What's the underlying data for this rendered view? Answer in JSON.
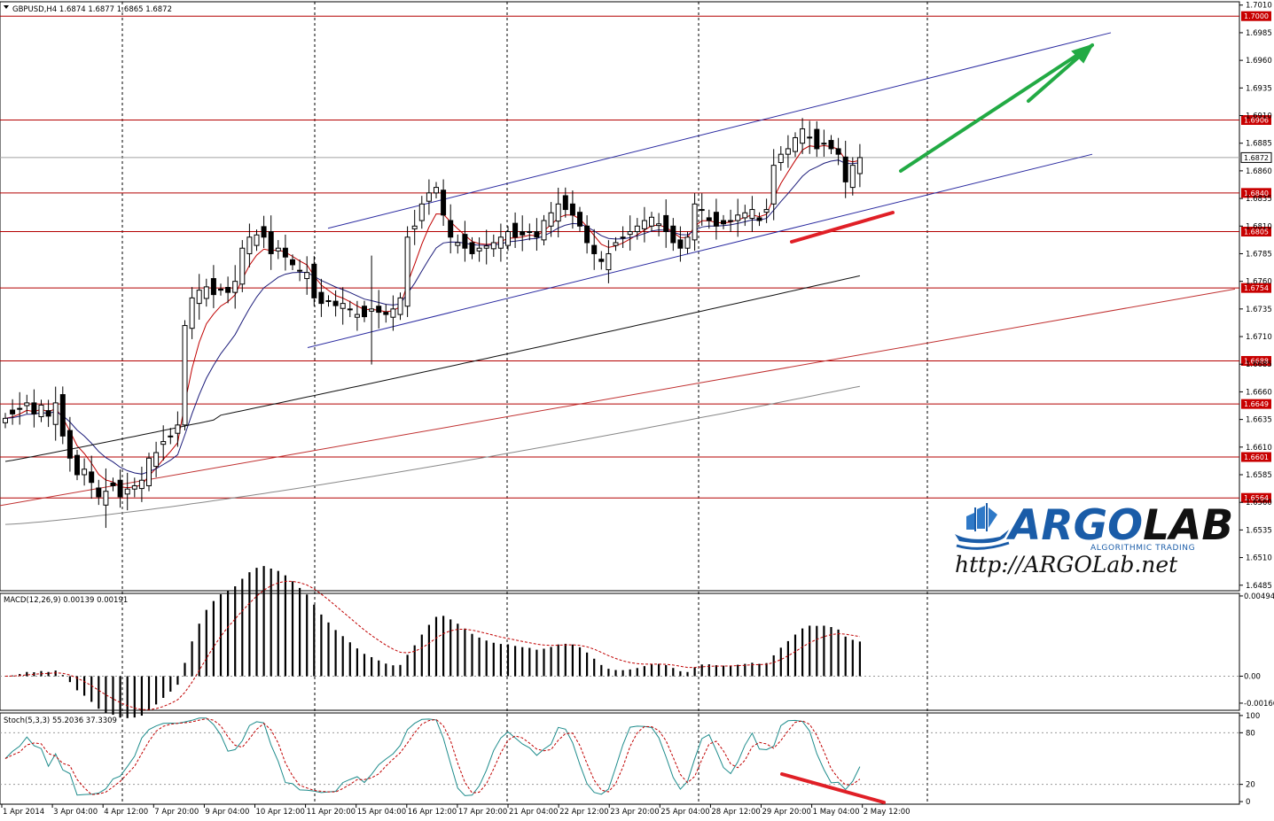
{
  "chart_data": [
    {
      "type": "candlestick",
      "header": "GBPUSD,H4  1.6874 1.6877 1.6865 1.6872",
      "y_ticks": [
        "1.7010",
        "1.6985",
        "1.6960",
        "1.6935",
        "1.6910",
        "1.6885",
        "1.6860",
        "1.6835",
        "1.6810",
        "1.6785",
        "1.6760",
        "1.6735",
        "1.6710",
        "1.6685",
        "1.6660",
        "1.6635",
        "1.6610",
        "1.6585",
        "1.6560",
        "1.6535",
        "1.6510",
        "1.6485"
      ],
      "ylim": [
        1.648,
        1.7013
      ],
      "x_labels": [
        "1 Apr 2014",
        "3 Apr 04:00",
        "4 Apr 12:00",
        "7 Apr 20:00",
        "9 Apr 04:00",
        "10 Apr 12:00",
        "11 Apr 20:00",
        "15 Apr 04:00",
        "16 Apr 12:00",
        "17 Apr 20:00",
        "21 Apr 04:00",
        "22 Apr 12:00",
        "23 Apr 20:00",
        "25 Apr 04:00",
        "28 Apr 12:00",
        "29 Apr 20:00",
        "1 May 04:00",
        "2 May 12:00"
      ],
      "grid": "vertical dashed lines at day boundaries",
      "horizontal_levels": [
        {
          "label": "1.7000",
          "value": 1.7
        },
        {
          "label": "1.6906",
          "value": 1.6906
        },
        {
          "label": "1.6840",
          "value": 1.684
        },
        {
          "label": "1.6805",
          "value": 1.6805
        },
        {
          "label": "1.6754",
          "value": 1.6754
        },
        {
          "label": "1.6688",
          "value": 1.6688
        },
        {
          "label": "1.6649",
          "value": 1.6649
        },
        {
          "label": "1.6601",
          "value": 1.6601
        },
        {
          "label": "1.6564",
          "value": 1.6564
        }
      ],
      "current_price": {
        "label": "1.6872",
        "value": 1.6872
      },
      "closes": [
        1.6636,
        1.664,
        1.6645,
        1.665,
        1.664,
        1.6648,
        1.6638,
        1.665,
        1.662,
        1.66,
        1.6585,
        1.659,
        1.6578,
        1.6565,
        1.657,
        1.6575,
        1.6565,
        1.6572,
        1.6575,
        1.658,
        1.66,
        1.6605,
        1.6615,
        1.662,
        1.663,
        1.672,
        1.6745,
        1.6752,
        1.6755,
        1.6748,
        1.6752,
        1.675,
        1.676,
        1.679,
        1.68,
        1.6802,
        1.68,
        1.6785,
        1.679,
        1.6782,
        1.6775,
        1.677,
        1.6768,
        1.6745,
        1.674,
        1.6742,
        1.6738,
        1.674,
        1.6735,
        1.673,
        1.6728,
        1.6735,
        1.6732,
        1.673,
        1.6735,
        1.6745,
        1.68,
        1.681,
        1.683,
        1.684,
        1.6845,
        1.682,
        1.68,
        1.6795,
        1.679,
        1.6785,
        1.679,
        1.6792,
        1.6795,
        1.68,
        1.6805,
        1.68,
        1.6802,
        1.6805,
        1.68,
        1.6815,
        1.6822,
        1.683,
        1.6825,
        1.682,
        1.681,
        1.6795,
        1.6785,
        1.6778,
        1.6785,
        1.6795,
        1.68,
        1.6805,
        1.681,
        1.6815,
        1.6818,
        1.6812,
        1.6805,
        1.6795,
        1.679,
        1.68,
        1.683,
        1.6825,
        1.6815,
        1.681,
        1.6812,
        1.6815,
        1.682,
        1.6822,
        1.6825,
        1.6815,
        1.6825,
        1.6865,
        1.6875,
        1.688,
        1.689,
        1.6898,
        1.689,
        1.688,
        1.6885,
        1.688,
        1.6875,
        1.685,
        1.6865,
        1.6872
      ],
      "moving_averages": [
        {
          "color": "#c00000",
          "role": "fast MA"
        },
        {
          "color": "#1c1c7a",
          "role": "medium MA"
        },
        {
          "color": "#111111",
          "role": "slow MA"
        },
        {
          "color": "#888888",
          "role": "long MA"
        }
      ],
      "channel": {
        "color": "#2a2aa0",
        "style": "upward parallel channel"
      },
      "trend_line": {
        "color": "#c03030"
      },
      "annotations": [
        {
          "kind": "arrow",
          "color": "#22aa44",
          "direction": "up-right"
        },
        {
          "kind": "line",
          "color": "#e01f26",
          "meaning": "rising lows at channel support"
        }
      ]
    },
    {
      "type": "bar",
      "indicator": "MACD",
      "header": "MACD(12,26,9) 0.00139 0.00191",
      "y_ticks": [
        "0.00494",
        "0.00",
        "-0.00166"
      ],
      "ylim": [
        -0.0021,
        0.0051
      ],
      "histogram_color": "#000000",
      "signal_color": "#c00000"
    },
    {
      "type": "line",
      "indicator": "Stochastic",
      "header": "Stoch(5,3,3) 55.2036 37.3309",
      "y_ticks": [
        "100",
        "80",
        "20",
        "0"
      ],
      "ylim": [
        -3,
        103
      ],
      "levels": [
        80,
        20
      ],
      "main_color": "#1e8c8c",
      "signal_color": "#c00000",
      "annotation": {
        "kind": "line",
        "color": "#e01f26",
        "meaning": "falling lows (divergence)"
      }
    }
  ],
  "logo": {
    "brand": "ARGOLAB",
    "brand_a": "ARGO",
    "brand_b": "LAB",
    "tagline": "ALGORITHMIC TRADING",
    "url": "http://ARGOLab.net"
  }
}
